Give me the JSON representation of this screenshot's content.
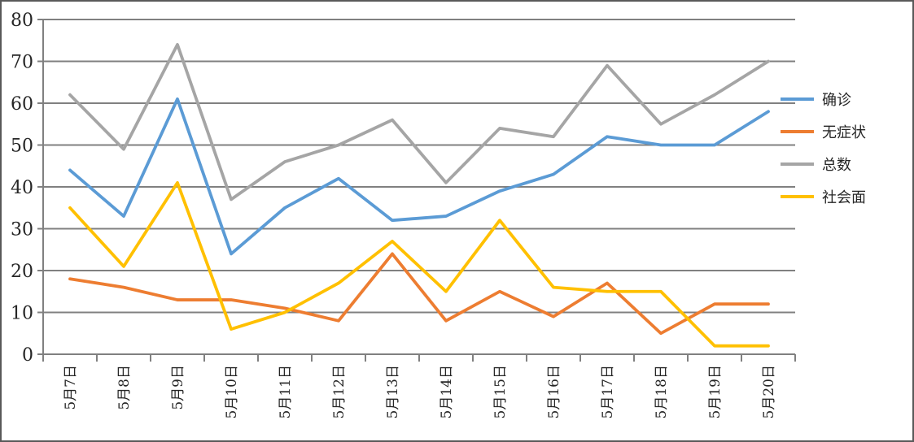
{
  "chart_data": {
    "type": "line",
    "title": "",
    "xlabel": "",
    "ylabel": "",
    "categories": [
      "5月7日",
      "5月8日",
      "5月9日",
      "5月10日",
      "5月11日",
      "5月12日",
      "5月13日",
      "5月14日",
      "5月15日",
      "5月16日",
      "5月17日",
      "5月18日",
      "5月19日",
      "5月20日"
    ],
    "series": [
      {
        "name": "确诊",
        "color": "#5B9BD5",
        "values": [
          44,
          33,
          61,
          24,
          35,
          42,
          32,
          33,
          39,
          43,
          52,
          50,
          50,
          58
        ]
      },
      {
        "name": "无症状",
        "color": "#ED7D31",
        "values": [
          18,
          16,
          13,
          13,
          11,
          8,
          24,
          8,
          15,
          9,
          17,
          5,
          12,
          12
        ]
      },
      {
        "name": "总数",
        "color": "#A5A5A5",
        "values": [
          62,
          49,
          74,
          37,
          46,
          50,
          56,
          41,
          54,
          52,
          69,
          55,
          62,
          70
        ]
      },
      {
        "name": "社会面",
        "color": "#FFC000",
        "values": [
          35,
          21,
          41,
          6,
          10,
          17,
          27,
          15,
          32,
          16,
          15,
          15,
          2,
          2
        ]
      }
    ],
    "y_axis": {
      "min": 0,
      "max": 80,
      "step": 10,
      "tick_labels": [
        "0",
        "10",
        "20",
        "30",
        "40",
        "50",
        "60",
        "70",
        "80"
      ]
    },
    "ylim": [
      0,
      80
    ],
    "grid": true,
    "legend_position": "right",
    "colors": {
      "gridline": "#808080",
      "axis": "#808080",
      "text": "#262626",
      "frame_border": "#595959",
      "background": "#FFFFFF"
    }
  }
}
